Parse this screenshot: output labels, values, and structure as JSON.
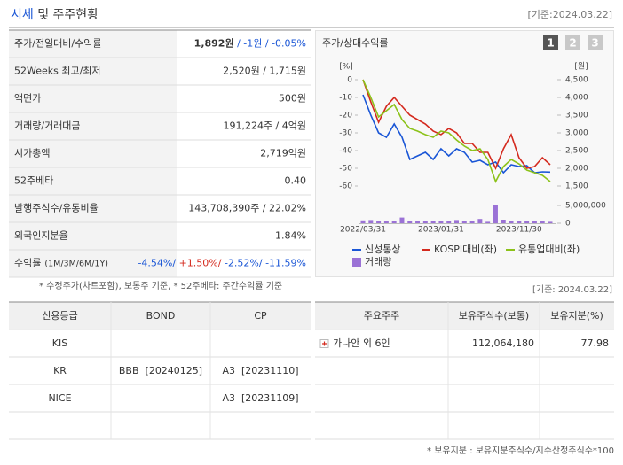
{
  "header": {
    "title_parts": [
      "시세",
      " 및 주주현황"
    ],
    "date": "[기준:2024.03.22]"
  },
  "market_table": {
    "rows": [
      {
        "label": "주가/전일대비/수익률",
        "values": [
          "1,892원",
          " / -1원 / -0.05%"
        ]
      },
      {
        "label": "52Weeks 최고/최저",
        "values": [
          "2,520원 / 1,715원"
        ]
      },
      {
        "label": "액면가",
        "values": [
          "500원"
        ]
      },
      {
        "label": "거래량/거래대금",
        "values": [
          "191,224주 / 4억원"
        ]
      },
      {
        "label": "시가총액",
        "values": [
          "2,719억원"
        ]
      },
      {
        "label": "52주베타",
        "values": [
          "0.40"
        ]
      },
      {
        "label": "발행주식수/유통비율",
        "values": [
          "143,708,390주 / 22.02%"
        ]
      },
      {
        "label": "외국인지분율",
        "values": [
          "1.84%"
        ]
      },
      {
        "label": "수익률",
        "sub": "(1M/3M/6M/1Y)",
        "values": [
          "-4.54%/",
          " +1.50%/",
          " -2.52%/",
          " -11.59%"
        ]
      }
    ]
  },
  "chart_data": {
    "type": "line",
    "title": "주가/상대수익률",
    "tabs": [
      "1",
      "2",
      "3"
    ],
    "y_unit": "[%]",
    "y2_unit": "[원]",
    "categories": [
      "2022/03/31",
      null,
      null,
      null,
      null,
      null,
      null,
      null,
      null,
      null,
      "2023/01/31",
      null,
      null,
      null,
      null,
      null,
      null,
      null,
      null,
      null,
      "2023/11/30",
      null,
      null,
      null,
      null
    ],
    "ylim": [
      -60,
      0
    ],
    "yticks": [
      0,
      -10,
      -20,
      -30,
      -40,
      -50,
      -60
    ],
    "y2lim": [
      1500,
      4500
    ],
    "y2ticks": [
      {
        "value": 4500,
        "label": "4,500"
      },
      {
        "value": 4000,
        "label": "4,000"
      },
      {
        "value": 3500,
        "label": "3,500"
      },
      {
        "value": 3000,
        "label": "3,000"
      },
      {
        "value": 2500,
        "label": "2,500"
      },
      {
        "value": 2000,
        "label": "2,000"
      },
      {
        "value": 1500,
        "label": "1,500"
      }
    ],
    "y3lim": [
      0,
      5000000
    ],
    "y3ticks": [
      {
        "value": 5000000,
        "label": "5,000,000"
      },
      0
    ],
    "series": [
      {
        "name": "신성통상",
        "color": "#1a56d6",
        "axis": "y2",
        "values": [
          4075,
          3500,
          3000,
          2875,
          3250,
          2875,
          2250,
          2350,
          2450,
          2250,
          2550,
          2350,
          2550,
          2450,
          2175,
          2225,
          2100,
          2175,
          1875,
          2100,
          2050,
          2075,
          1875,
          1900,
          1892
        ]
      },
      {
        "name": "KOSPI대비(좌)",
        "color": "#d42a1e",
        "values": [
          0,
          -12.5,
          -24,
          -15,
          -10,
          -15,
          -20,
          -22.5,
          -25,
          -29,
          -31,
          -27.5,
          -30,
          -36,
          -36,
          -41,
          -41,
          -50,
          -39,
          -31,
          -44,
          -50,
          -49,
          -44,
          -48
        ]
      },
      {
        "name": "유통업대비(좌)",
        "color": "#8cc21a",
        "values": [
          0,
          -10,
          -21,
          -17.5,
          -14,
          -22.5,
          -27.5,
          -29,
          -31,
          -32.5,
          -29,
          -30,
          -34,
          -37.5,
          -40,
          -39,
          -45,
          -57.5,
          -49,
          -45,
          -47.5,
          -51,
          -52.5,
          -54,
          -57.5
        ]
      },
      {
        "name": "거래량",
        "color": "#9b72d6",
        "axis": "y3",
        "kind": "bar",
        "values": [
          800000,
          900000,
          700000,
          600000,
          500000,
          1600000,
          700000,
          600000,
          600000,
          500000,
          500000,
          700000,
          900000,
          500000,
          600000,
          1200000,
          400000,
          5200000,
          1000000,
          700000,
          600000,
          600000,
          500000,
          500000,
          400000
        ]
      }
    ]
  },
  "notes": {
    "left": "* 수정주가(차트포함), 보통주 기준, * 52주베타: 주간수익률 기준",
    "right": "[기준: 2024.03.22]"
  },
  "credit_table": {
    "header": [
      "신용등급",
      "BOND",
      "CP"
    ],
    "rows": [
      [
        "KIS",
        null,
        null
      ],
      [
        "KR",
        "BBB  [20240125]",
        "A3  [20231110]"
      ],
      [
        "NICE",
        null,
        "A3  [20231109]"
      ]
    ]
  },
  "holders_table": {
    "header": [
      "주요주주",
      "보유주식수(보통)",
      "보유지분(%)"
    ],
    "rows": [
      [
        "가나안 외 6인",
        "112,064,180",
        "77.98"
      ]
    ]
  },
  "footnote": "* 보유지분 : 보유지분주식수/지수산정주식수*100"
}
